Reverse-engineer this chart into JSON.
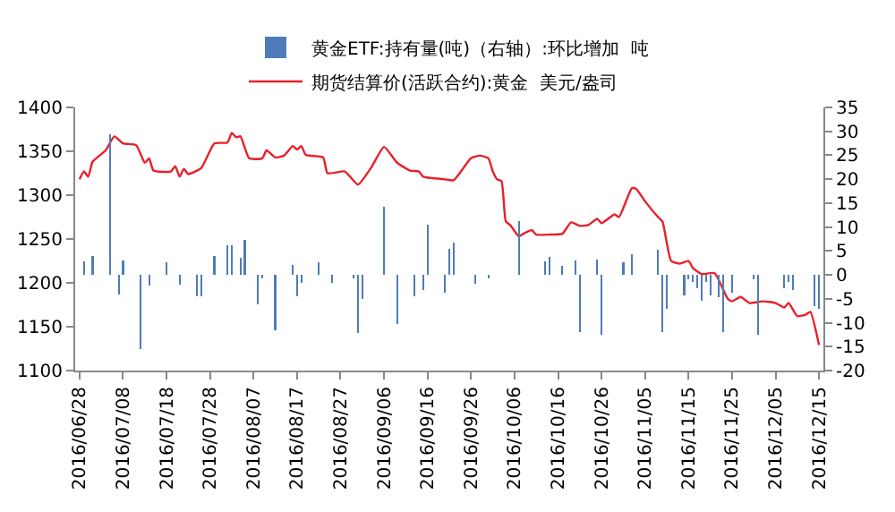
{
  "chart_data": {
    "type": "bar",
    "xlim": [
      "2016-06-27",
      "2016-12-16"
    ],
    "xticks": [
      {
        "value": "2016-06-28",
        "label": "2016/06/28"
      },
      {
        "value": "2016-07-08",
        "label": "2016/07/08"
      },
      {
        "value": "2016-07-18",
        "label": "2016/07/18"
      },
      {
        "value": "2016-07-28",
        "label": "2016/07/28"
      },
      {
        "value": "2016-08-07",
        "label": "2016/08/07"
      },
      {
        "value": "2016-08-17",
        "label": "2016/08/17"
      },
      {
        "value": "2016-08-27",
        "label": "2016/08/27"
      },
      {
        "value": "2016-09-06",
        "label": "2016/09/06"
      },
      {
        "value": "2016-09-16",
        "label": "2016/09/16"
      },
      {
        "value": "2016-09-26",
        "label": "2016/09/26"
      },
      {
        "value": "2016-10-06",
        "label": "2016/10/06"
      },
      {
        "value": "2016-10-16",
        "label": "2016/10/16"
      },
      {
        "value": "2016-10-26",
        "label": "2016/10/26"
      },
      {
        "value": "2016-11-05",
        "label": "2016/11/05"
      },
      {
        "value": "2016-11-15",
        "label": "2016/11/15"
      },
      {
        "value": "2016-11-25",
        "label": "2016/11/25"
      },
      {
        "value": "2016-12-05",
        "label": "2016/12/05"
      },
      {
        "value": "2016-12-15",
        "label": "2016/12/15"
      }
    ],
    "ylim": [
      1100,
      1400
    ],
    "yticks": [
      1100,
      1150,
      1200,
      1250,
      1300,
      1350,
      1400
    ],
    "y2lim": [
      -20,
      35
    ],
    "y2ticks": [
      -20,
      -15,
      -10,
      -5,
      0,
      5,
      10,
      15,
      20,
      25,
      30,
      35
    ],
    "grid": false,
    "legend": "top",
    "series": [
      {
        "name": "黄金ETF:持有量(吨)（右轴）:环比增加  吨",
        "axis": "y2",
        "color": "#4f7cb8",
        "x": [
          "2016-06-29",
          "2016-07-01",
          "2016-07-05",
          "2016-07-07",
          "2016-07-08",
          "2016-07-12",
          "2016-07-14",
          "2016-07-18",
          "2016-07-21",
          "2016-07-25",
          "2016-07-26",
          "2016-07-29",
          "2016-08-01",
          "2016-08-02",
          "2016-08-04",
          "2016-08-05",
          "2016-08-08",
          "2016-08-09",
          "2016-08-12",
          "2016-08-16",
          "2016-08-17",
          "2016-08-18",
          "2016-08-22",
          "2016-08-25",
          "2016-08-30",
          "2016-08-31",
          "2016-09-01",
          "2016-09-06",
          "2016-09-07",
          "2016-09-09",
          "2016-09-13",
          "2016-09-15",
          "2016-09-16",
          "2016-09-20",
          "2016-09-21",
          "2016-09-22",
          "2016-09-27",
          "2016-09-30",
          "2016-10-07",
          "2016-10-13",
          "2016-10-14",
          "2016-10-17",
          "2016-10-20",
          "2016-10-21",
          "2016-10-25",
          "2016-10-26",
          "2016-10-31",
          "2016-11-02",
          "2016-11-08",
          "2016-11-09",
          "2016-11-10",
          "2016-11-14",
          "2016-11-15",
          "2016-11-16",
          "2016-11-17",
          "2016-11-18",
          "2016-11-19",
          "2016-11-20",
          "2016-11-22",
          "2016-11-23",
          "2016-11-25",
          "2016-11-30",
          "2016-12-01",
          "2016-12-07",
          "2016-12-08",
          "2016-12-09",
          "2016-12-14",
          "2016-12-15"
        ],
        "values": [
          2.9,
          4.0,
          29.3,
          -4.1,
          3.1,
          -15.6,
          -2.2,
          2.6,
          -2,
          -4.4,
          -4.4,
          4.0,
          6.1,
          6.1,
          3.6,
          7.3,
          -6.2,
          -0.8,
          -11.5,
          2.1,
          -4.4,
          -1.6,
          2.6,
          -1.6,
          -0.8,
          -12.2,
          -5,
          14.2,
          null,
          -10.3,
          -4.4,
          -3.1,
          10.5,
          -3.7,
          5.4,
          6.7,
          -1.9,
          -0.8,
          11.3,
          2.8,
          3.7,
          1.9,
          3,
          -12,
          3.2,
          -12.5,
          2.6,
          4.4,
          5.3,
          -12,
          -7,
          -4.2,
          -0.9,
          -1.4,
          -2.8,
          -5.4,
          -1.4,
          -4.2,
          -4.6,
          -12,
          -3.7,
          -0.9,
          -12.5,
          -2.8,
          -1.4,
          -3.2,
          -6.5,
          -7
        ]
      },
      {
        "name": "期货结算价(活跃合约):黄金  美元/盎司",
        "type": "line",
        "axis": "y",
        "color": "#e8202a",
        "x": [
          "2016-06-28",
          "2016-06-29",
          "2016-06-30",
          "2016-07-01",
          "2016-07-04",
          "2016-07-06",
          "2016-07-08",
          "2016-07-11",
          "2016-07-13",
          "2016-07-14",
          "2016-07-15",
          "2016-07-19",
          "2016-07-20",
          "2016-07-21",
          "2016-07-22",
          "2016-07-23",
          "2016-07-26",
          "2016-07-29",
          "2016-08-01",
          "2016-08-02",
          "2016-08-03",
          "2016-08-04",
          "2016-08-06",
          "2016-08-09",
          "2016-08-10",
          "2016-08-12",
          "2016-08-14",
          "2016-08-16",
          "2016-08-17",
          "2016-08-18",
          "2016-08-19",
          "2016-08-23",
          "2016-08-24",
          "2016-08-28",
          "2016-08-31",
          "2016-09-03",
          "2016-09-06",
          "2016-09-09",
          "2016-09-12",
          "2016-09-14",
          "2016-09-15",
          "2016-09-20",
          "2016-09-22",
          "2016-09-26",
          "2016-09-28",
          "2016-09-30",
          "2016-10-01",
          "2016-10-02",
          "2016-10-03",
          "2016-10-04",
          "2016-10-05",
          "2016-10-07",
          "2016-10-08",
          "2016-10-10",
          "2016-10-11",
          "2016-10-14",
          "2016-10-17",
          "2016-10-19",
          "2016-10-21",
          "2016-10-23",
          "2016-10-25",
          "2016-10-26",
          "2016-10-29",
          "2016-10-30",
          "2016-11-02",
          "2016-11-03",
          "2016-11-05",
          "2016-11-08",
          "2016-11-09",
          "2016-11-11",
          "2016-11-13",
          "2016-11-15",
          "2016-11-16",
          "2016-11-18",
          "2016-11-21",
          "2016-11-24",
          "2016-11-25",
          "2016-11-27",
          "2016-11-29",
          "2016-12-02",
          "2016-12-05",
          "2016-12-07",
          "2016-12-08",
          "2016-12-10",
          "2016-12-12",
          "2016-12-13",
          "2016-12-15"
        ],
        "values": [
          1318,
          1327,
          1321,
          1338,
          1351,
          1367,
          1359,
          1357,
          1337,
          1342,
          1328,
          1327,
          1333,
          1321,
          1330,
          1324,
          1331,
          1359,
          1360,
          1371,
          1366,
          1367,
          1342,
          1342,
          1351,
          1343,
          1345,
          1356,
          1352,
          1356,
          1346,
          1343,
          1325,
          1327,
          1312,
          1331,
          1355,
          1337,
          1328,
          1327,
          1321,
          1318,
          1317,
          1342,
          1345,
          1342,
          1327,
          1318,
          1316,
          1270,
          1266,
          1253,
          1256,
          1260,
          1255,
          1255,
          1256,
          1269,
          1265,
          1266,
          1273,
          1268,
          1278,
          1275,
          1308,
          1307,
          1293,
          1275,
          1270,
          1225,
          1222,
          1225,
          1217,
          1210,
          1211,
          1182,
          1179,
          1184,
          1177,
          1179,
          1177,
          1172,
          1177,
          1162,
          1164,
          1167,
          1129
        ]
      }
    ]
  }
}
